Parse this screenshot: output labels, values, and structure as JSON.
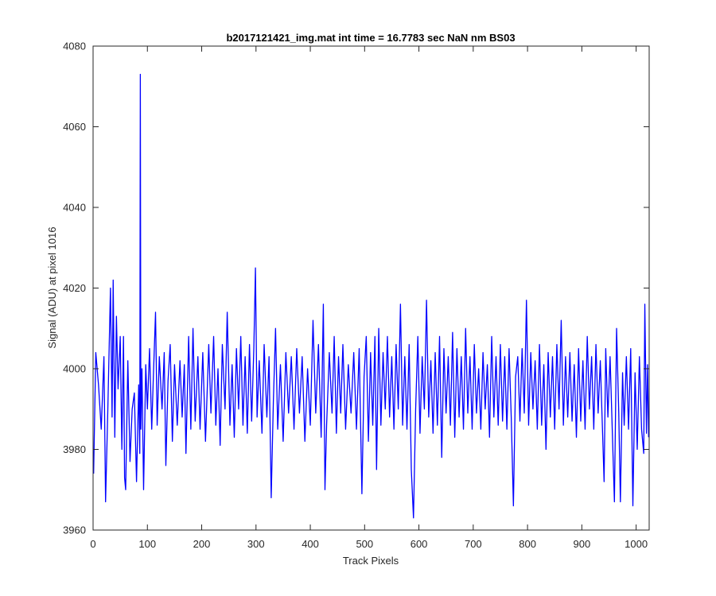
{
  "chart_data": {
    "type": "line",
    "title": "b2017121421_img.mat int time = 16.7783 sec  NaN nm BS03",
    "xlabel": "Track Pixels",
    "ylabel": "Signal (ADU) at pixel 1016",
    "xlim": [
      0,
      1024
    ],
    "ylim": [
      3960,
      4080
    ],
    "xticks": [
      0,
      100,
      200,
      300,
      400,
      500,
      600,
      700,
      800,
      900,
      1000
    ],
    "yticks": [
      3960,
      3980,
      4000,
      4020,
      4040,
      4060,
      4080
    ],
    "grid": false,
    "legend": "none",
    "series": [
      {
        "color": "#0000ff",
        "points": [
          [
            1,
            3974
          ],
          [
            5,
            4004
          ],
          [
            10,
            3996
          ],
          [
            15,
            3985
          ],
          [
            20,
            4003
          ],
          [
            23,
            3967
          ],
          [
            27,
            3989
          ],
          [
            32,
            4020
          ],
          [
            35,
            3988
          ],
          [
            37,
            4022
          ],
          [
            40,
            3983
          ],
          [
            43,
            4013
          ],
          [
            46,
            3995
          ],
          [
            50,
            4008
          ],
          [
            53,
            3980
          ],
          [
            56,
            4008
          ],
          [
            58,
            3973
          ],
          [
            60,
            3970
          ],
          [
            64,
            4002
          ],
          [
            68,
            3977
          ],
          [
            72,
            3990
          ],
          [
            76,
            3994
          ],
          [
            80,
            3972
          ],
          [
            84,
            3996
          ],
          [
            86,
            3979
          ],
          [
            87,
            4073
          ],
          [
            88,
            3985
          ],
          [
            90,
            4000
          ],
          [
            93,
            3970
          ],
          [
            97,
            4001
          ],
          [
            100,
            3990
          ],
          [
            104,
            4005
          ],
          [
            108,
            3985
          ],
          [
            111,
            3998
          ],
          [
            115,
            4014
          ],
          [
            118,
            3986
          ],
          [
            122,
            4003
          ],
          [
            127,
            3990
          ],
          [
            131,
            4004
          ],
          [
            134,
            3976
          ],
          [
            138,
            3997
          ],
          [
            142,
            4006
          ],
          [
            146,
            3982
          ],
          [
            150,
            4001
          ],
          [
            155,
            3986
          ],
          [
            160,
            4002
          ],
          [
            164,
            3988
          ],
          [
            168,
            4001
          ],
          [
            171,
            3979
          ],
          [
            176,
            4008
          ],
          [
            180,
            3985
          ],
          [
            184,
            4010
          ],
          [
            188,
            3987
          ],
          [
            193,
            4003
          ],
          [
            197,
            3985
          ],
          [
            202,
            4004
          ],
          [
            207,
            3982
          ],
          [
            213,
            4006
          ],
          [
            217,
            3989
          ],
          [
            222,
            4008
          ],
          [
            226,
            3986
          ],
          [
            230,
            4000
          ],
          [
            234,
            3981
          ],
          [
            238,
            4006
          ],
          [
            243,
            3990
          ],
          [
            247,
            4014
          ],
          [
            252,
            3986
          ],
          [
            256,
            4001
          ],
          [
            260,
            3983
          ],
          [
            264,
            4005
          ],
          [
            268,
            3990
          ],
          [
            272,
            4008
          ],
          [
            276,
            3986
          ],
          [
            280,
            4003
          ],
          [
            284,
            3984
          ],
          [
            288,
            4006
          ],
          [
            292,
            3987
          ],
          [
            296,
            4005
          ],
          [
            299,
            4025
          ],
          [
            302,
            3988
          ],
          [
            306,
            4002
          ],
          [
            311,
            3984
          ],
          [
            315,
            4006
          ],
          [
            320,
            3988
          ],
          [
            324,
            4003
          ],
          [
            328,
            3968
          ],
          [
            332,
            3992
          ],
          [
            336,
            4010
          ],
          [
            340,
            3985
          ],
          [
            345,
            4001
          ],
          [
            350,
            3982
          ],
          [
            355,
            4004
          ],
          [
            360,
            3989
          ],
          [
            365,
            4003
          ],
          [
            370,
            3985
          ],
          [
            375,
            4005
          ],
          [
            380,
            3989
          ],
          [
            385,
            4003
          ],
          [
            390,
            3982
          ],
          [
            395,
            4000
          ],
          [
            400,
            3986
          ],
          [
            405,
            4012
          ],
          [
            410,
            3989
          ],
          [
            415,
            4006
          ],
          [
            420,
            3983
          ],
          [
            424,
            4016
          ],
          [
            427,
            3970
          ],
          [
            430,
            3986
          ],
          [
            435,
            4004
          ],
          [
            440,
            3989
          ],
          [
            444,
            4008
          ],
          [
            448,
            3984
          ],
          [
            452,
            4003
          ],
          [
            456,
            3989
          ],
          [
            460,
            4006
          ],
          [
            465,
            3985
          ],
          [
            470,
            4001
          ],
          [
            475,
            3989
          ],
          [
            480,
            4004
          ],
          [
            485,
            3985
          ],
          [
            490,
            4005
          ],
          [
            495,
            3969
          ],
          [
            499,
            3998
          ],
          [
            503,
            4008
          ],
          [
            507,
            3982
          ],
          [
            511,
            4004
          ],
          [
            515,
            3986
          ],
          [
            519,
            4008
          ],
          [
            522,
            3975
          ],
          [
            526,
            4010
          ],
          [
            530,
            3986
          ],
          [
            534,
            4004
          ],
          [
            538,
            3990
          ],
          [
            542,
            4008
          ],
          [
            546,
            3988
          ],
          [
            550,
            4003
          ],
          [
            554,
            3985
          ],
          [
            558,
            4006
          ],
          [
            562,
            3990
          ],
          [
            566,
            4016
          ],
          [
            570,
            3986
          ],
          [
            574,
            4003
          ],
          [
            578,
            3985
          ],
          [
            582,
            4006
          ],
          [
            586,
            3975
          ],
          [
            590,
            3963
          ],
          [
            594,
            3990
          ],
          [
            598,
            4008
          ],
          [
            602,
            3984
          ],
          [
            606,
            4003
          ],
          [
            610,
            3990
          ],
          [
            614,
            4017
          ],
          [
            618,
            3988
          ],
          [
            622,
            4002
          ],
          [
            626,
            3984
          ],
          [
            630,
            4004
          ],
          [
            634,
            3986
          ],
          [
            638,
            4008
          ],
          [
            642,
            3978
          ],
          [
            646,
            4005
          ],
          [
            650,
            3989
          ],
          [
            654,
            4003
          ],
          [
            658,
            3986
          ],
          [
            662,
            4009
          ],
          [
            666,
            3983
          ],
          [
            670,
            4005
          ],
          [
            674,
            3988
          ],
          [
            678,
            4003
          ],
          [
            682,
            3985
          ],
          [
            686,
            4010
          ],
          [
            690,
            3989
          ],
          [
            694,
            4003
          ],
          [
            698,
            3985
          ],
          [
            702,
            4006
          ],
          [
            706,
            3989
          ],
          [
            710,
            4000
          ],
          [
            714,
            3985
          ],
          [
            718,
            4004
          ],
          [
            722,
            3990
          ],
          [
            726,
            4001
          ],
          [
            730,
            3983
          ],
          [
            734,
            4008
          ],
          [
            738,
            3988
          ],
          [
            742,
            4003
          ],
          [
            746,
            3986
          ],
          [
            750,
            4006
          ],
          [
            754,
            3987
          ],
          [
            758,
            4003
          ],
          [
            762,
            3985
          ],
          [
            766,
            4005
          ],
          [
            770,
            3988
          ],
          [
            774,
            3966
          ],
          [
            778,
            3998
          ],
          [
            782,
            4003
          ],
          [
            786,
            3987
          ],
          [
            790,
            4005
          ],
          [
            794,
            3989
          ],
          [
            798,
            4017
          ],
          [
            802,
            3986
          ],
          [
            806,
            4004
          ],
          [
            810,
            3990
          ],
          [
            814,
            4002
          ],
          [
            818,
            3985
          ],
          [
            822,
            4006
          ],
          [
            826,
            3986
          ],
          [
            830,
            4001
          ],
          [
            834,
            3980
          ],
          [
            838,
            4004
          ],
          [
            842,
            3988
          ],
          [
            846,
            4003
          ],
          [
            850,
            3985
          ],
          [
            854,
            4006
          ],
          [
            858,
            3990
          ],
          [
            862,
            4012
          ],
          [
            866,
            3986
          ],
          [
            870,
            4003
          ],
          [
            874,
            3988
          ],
          [
            878,
            4004
          ],
          [
            882,
            3987
          ],
          [
            886,
            4001
          ],
          [
            890,
            3983
          ],
          [
            894,
            4005
          ],
          [
            898,
            3987
          ],
          [
            902,
            4002
          ],
          [
            906,
            3985
          ],
          [
            910,
            4008
          ],
          [
            914,
            3990
          ],
          [
            918,
            4003
          ],
          [
            922,
            3985
          ],
          [
            926,
            4006
          ],
          [
            930,
            3989
          ],
          [
            934,
            4002
          ],
          [
            938,
            3985
          ],
          [
            941,
            3972
          ],
          [
            944,
            4005
          ],
          [
            948,
            3988
          ],
          [
            952,
            4003
          ],
          [
            956,
            3985
          ],
          [
            960,
            3967
          ],
          [
            964,
            4010
          ],
          [
            968,
            3989
          ],
          [
            971,
            3967
          ],
          [
            975,
            3999
          ],
          [
            978,
            3986
          ],
          [
            982,
            4003
          ],
          [
            986,
            3985
          ],
          [
            990,
            4005
          ],
          [
            994,
            3966
          ],
          [
            998,
            3999
          ],
          [
            1002,
            3980
          ],
          [
            1006,
            4003
          ],
          [
            1010,
            3985
          ],
          [
            1014,
            3979
          ],
          [
            1016,
            4016
          ],
          [
            1019,
            3984
          ],
          [
            1021,
            4001
          ],
          [
            1023,
            3983
          ]
        ]
      }
    ]
  }
}
